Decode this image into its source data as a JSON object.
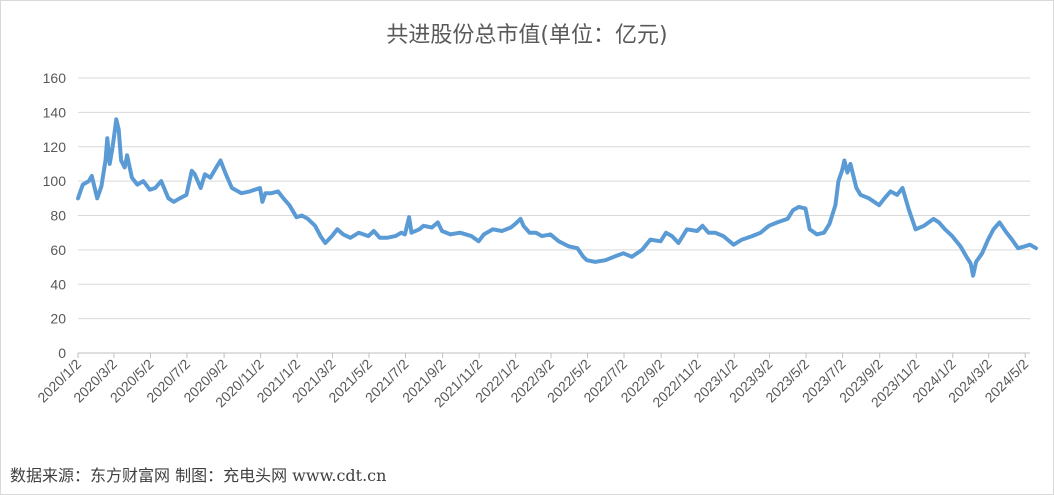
{
  "chart_data": {
    "type": "line",
    "title": "共进股份总市值(单位：亿元)",
    "xlabel": "",
    "ylabel": "",
    "ylim": [
      0,
      160
    ],
    "yticks": [
      "0",
      "20",
      "40",
      "60",
      "80",
      "100",
      "120",
      "140",
      "160"
    ],
    "x_tick_labels": [
      "2020/1/2",
      "2020/3/2",
      "2020/5/2",
      "2020/7/2",
      "2020/9/2",
      "2020/11/2",
      "2021/1/2",
      "2021/3/2",
      "2021/5/2",
      "2021/7/2",
      "2021/9/2",
      "2021/11/2",
      "2022/1/2",
      "2022/3/2",
      "2022/5/2",
      "2022/7/2",
      "2022/9/2",
      "2022/11/2",
      "2023/1/2",
      "2023/3/2",
      "2023/5/2",
      "2023/7/2",
      "2023/9/2",
      "2023/11/2",
      "2024/1/2",
      "2024/3/2",
      "2024/5/2"
    ],
    "grid": true,
    "color": "#5B9BD5",
    "series": [
      {
        "values": [
          [
            "2020/1/2",
            90
          ],
          [
            "2020/1/10",
            98
          ],
          [
            "2020/1/20",
            100
          ],
          [
            "2020/1/25",
            103
          ],
          [
            "2020/2/3",
            90
          ],
          [
            "2020/2/10",
            97
          ],
          [
            "2020/2/17",
            112
          ],
          [
            "2020/2/20",
            125
          ],
          [
            "2020/2/24",
            110
          ],
          [
            "2020/2/28",
            118
          ],
          [
            "2020/3/3",
            128
          ],
          [
            "2020/3/6",
            136
          ],
          [
            "2020/3/10",
            130
          ],
          [
            "2020/3/14",
            112
          ],
          [
            "2020/3/20",
            108
          ],
          [
            "2020/3/24",
            115
          ],
          [
            "2020/4/1",
            102
          ],
          [
            "2020/4/10",
            98
          ],
          [
            "2020/4/20",
            100
          ],
          [
            "2020/5/1",
            95
          ],
          [
            "2020/5/10",
            96
          ],
          [
            "2020/5/20",
            100
          ],
          [
            "2020/6/1",
            90
          ],
          [
            "2020/6/10",
            88
          ],
          [
            "2020/6/20",
            90
          ],
          [
            "2020/7/1",
            92
          ],
          [
            "2020/7/10",
            106
          ],
          [
            "2020/7/15",
            104
          ],
          [
            "2020/7/25",
            96
          ],
          [
            "2020/8/1",
            104
          ],
          [
            "2020/8/10",
            102
          ],
          [
            "2020/8/20",
            108
          ],
          [
            "2020/8/27",
            112
          ],
          [
            "2020/9/5",
            104
          ],
          [
            "2020/9/15",
            96
          ],
          [
            "2020/10/1",
            93
          ],
          [
            "2020/10/15",
            94
          ],
          [
            "2020/11/1",
            96
          ],
          [
            "2020/11/5",
            88
          ],
          [
            "2020/11/10",
            93
          ],
          [
            "2020/11/20",
            93
          ],
          [
            "2020/12/1",
            94
          ],
          [
            "2020/12/10",
            90
          ],
          [
            "2020/12/20",
            86
          ],
          [
            "2021/1/1",
            79
          ],
          [
            "2021/1/10",
            80
          ],
          [
            "2021/1/20",
            78
          ],
          [
            "2021/2/1",
            74
          ],
          [
            "2021/2/10",
            68
          ],
          [
            "2021/2/18",
            64
          ],
          [
            "2021/3/1",
            68
          ],
          [
            "2021/3/10",
            72
          ],
          [
            "2021/3/20",
            69
          ],
          [
            "2021/4/1",
            67
          ],
          [
            "2021/4/15",
            70
          ],
          [
            "2021/5/1",
            68
          ],
          [
            "2021/5/10",
            71
          ],
          [
            "2021/5/20",
            67
          ],
          [
            "2021/6/1",
            67
          ],
          [
            "2021/6/15",
            68
          ],
          [
            "2021/6/25",
            70
          ],
          [
            "2021/7/1",
            69
          ],
          [
            "2021/7/8",
            79
          ],
          [
            "2021/7/12",
            70
          ],
          [
            "2021/7/25",
            72
          ],
          [
            "2021/8/1",
            74
          ],
          [
            "2021/8/15",
            73
          ],
          [
            "2021/8/25",
            76
          ],
          [
            "2021/9/1",
            71
          ],
          [
            "2021/9/15",
            69
          ],
          [
            "2021/10/1",
            70
          ],
          [
            "2021/10/20",
            68
          ],
          [
            "2021/11/1",
            65
          ],
          [
            "2021/11/10",
            69
          ],
          [
            "2021/11/25",
            72
          ],
          [
            "2021/12/10",
            71
          ],
          [
            "2021/12/25",
            73
          ],
          [
            "2022/1/1",
            75
          ],
          [
            "2022/1/10",
            78
          ],
          [
            "2022/1/15",
            74
          ],
          [
            "2022/1/25",
            70
          ],
          [
            "2022/2/5",
            70
          ],
          [
            "2022/2/15",
            68
          ],
          [
            "2022/3/1",
            69
          ],
          [
            "2022/3/15",
            65
          ],
          [
            "2022/4/1",
            62
          ],
          [
            "2022/4/15",
            61
          ],
          [
            "2022/4/25",
            56
          ],
          [
            "2022/5/1",
            54
          ],
          [
            "2022/5/15",
            53
          ],
          [
            "2022/6/1",
            54
          ],
          [
            "2022/6/15",
            56
          ],
          [
            "2022/7/1",
            58
          ],
          [
            "2022/7/15",
            56
          ],
          [
            "2022/8/1",
            60
          ],
          [
            "2022/8/15",
            66
          ],
          [
            "2022/9/1",
            65
          ],
          [
            "2022/9/10",
            70
          ],
          [
            "2022/9/20",
            68
          ],
          [
            "2022/10/1",
            64
          ],
          [
            "2022/10/15",
            72
          ],
          [
            "2022/11/1",
            71
          ],
          [
            "2022/11/10",
            74
          ],
          [
            "2022/11/20",
            70
          ],
          [
            "2022/12/1",
            70
          ],
          [
            "2022/12/15",
            68
          ],
          [
            "2023/1/1",
            63
          ],
          [
            "2023/1/15",
            66
          ],
          [
            "2023/2/1",
            68
          ],
          [
            "2023/2/15",
            70
          ],
          [
            "2023/3/1",
            74
          ],
          [
            "2023/3/15",
            76
          ],
          [
            "2023/4/1",
            78
          ],
          [
            "2023/4/10",
            83
          ],
          [
            "2023/4/20",
            85
          ],
          [
            "2023/5/1",
            84
          ],
          [
            "2023/5/8",
            72
          ],
          [
            "2023/5/20",
            69
          ],
          [
            "2023/6/1",
            70
          ],
          [
            "2023/6/10",
            75
          ],
          [
            "2023/6/20",
            86
          ],
          [
            "2023/6/25",
            100
          ],
          [
            "2023/7/1",
            106
          ],
          [
            "2023/7/5",
            112
          ],
          [
            "2023/7/10",
            105
          ],
          [
            "2023/7/15",
            110
          ],
          [
            "2023/7/25",
            96
          ],
          [
            "2023/8/1",
            92
          ],
          [
            "2023/8/15",
            90
          ],
          [
            "2023/9/1",
            86
          ],
          [
            "2023/9/10",
            90
          ],
          [
            "2023/9/20",
            94
          ],
          [
            "2023/10/1",
            92
          ],
          [
            "2023/10/10",
            96
          ],
          [
            "2023/10/20",
            84
          ],
          [
            "2023/11/1",
            72
          ],
          [
            "2023/11/15",
            74
          ],
          [
            "2023/12/1",
            78
          ],
          [
            "2023/12/10",
            76
          ],
          [
            "2023/12/20",
            72
          ],
          [
            "2024/1/1",
            68
          ],
          [
            "2024/1/15",
            62
          ],
          [
            "2024/1/25",
            56
          ],
          [
            "2024/2/1",
            52
          ],
          [
            "2024/2/5",
            45
          ],
          [
            "2024/2/10",
            53
          ],
          [
            "2024/2/20",
            58
          ],
          [
            "2024/3/1",
            66
          ],
          [
            "2024/3/10",
            72
          ],
          [
            "2024/3/20",
            76
          ],
          [
            "2024/4/1",
            70
          ],
          [
            "2024/4/10",
            66
          ],
          [
            "2024/4/20",
            61
          ],
          [
            "2024/5/1",
            62
          ],
          [
            "2024/5/10",
            63
          ],
          [
            "2024/5/20",
            61
          ]
        ]
      }
    ]
  },
  "source_note": "数据来源：东方财富网    制图：充电头网 www.cdt.cn"
}
